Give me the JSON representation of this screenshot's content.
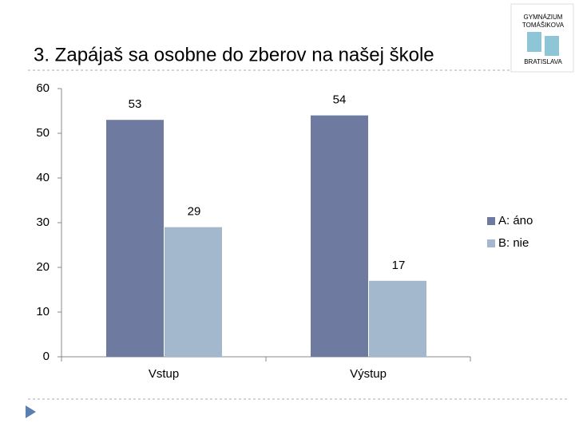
{
  "logo": {
    "lines": [
      "GYMNÁZIUM",
      "TOMÁŠIKOVA",
      "BRATISLAVA"
    ]
  },
  "chart_data": {
    "type": "bar",
    "title": "3. Zapájaš sa osobne do zberov na našej škole",
    "categories": [
      "Vstup",
      "Výstup"
    ],
    "series": [
      {
        "name": "A: áno",
        "color": "#6f7aa0",
        "values": [
          53,
          54
        ]
      },
      {
        "name": "B: nie",
        "color": "#a3b8cc",
        "values": [
          29,
          17
        ]
      }
    ],
    "ylim": [
      0,
      60
    ],
    "yticks": [
      0,
      10,
      20,
      30,
      40,
      50,
      60
    ],
    "grid": false,
    "legend": "right"
  }
}
